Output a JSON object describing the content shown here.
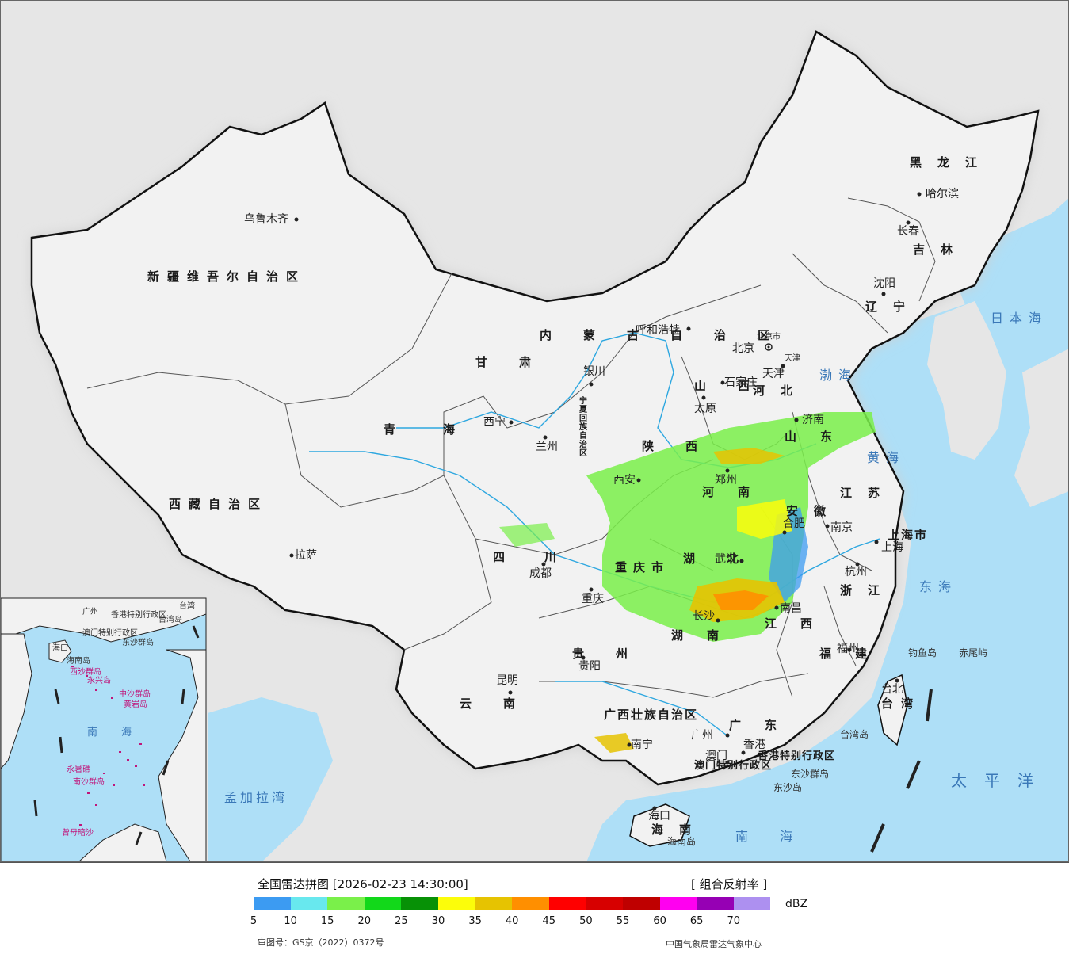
{
  "legend": {
    "title": "全国雷达拼图 [2026-02-23 14:30:00]",
    "product": "[ 组合反射率 ]",
    "unit": "dBZ",
    "ticks": [
      "5",
      "10",
      "15",
      "20",
      "25",
      "30",
      "35",
      "40",
      "45",
      "50",
      "55",
      "60",
      "65",
      "70"
    ],
    "colors": [
      "#3c9bf2",
      "#68e8ee",
      "#7af04a",
      "#12d81a",
      "#079106",
      "#fcfd0a",
      "#e6c301",
      "#ff8f00",
      "#ff0000",
      "#d70000",
      "#bf0000",
      "#ff00f0",
      "#9600b4",
      "#ad90f0"
    ],
    "approval": "审图号：GS京（2022）0372号",
    "organization": "中国气象局雷达气象中心"
  },
  "map": {
    "colors": {
      "land": "#f2f2f2",
      "sea": "#aedff7",
      "border": "#111111",
      "river": "#2da7e0"
    },
    "provinces": [
      "新疆维吾尔自治区",
      "西藏自治区",
      "青海",
      "甘肃",
      "内蒙古自治区",
      "黑龙江",
      "吉林",
      "辽宁",
      "河北",
      "山西",
      "陕西",
      "河南",
      "山东",
      "江苏",
      "安徽",
      "湖北",
      "四川",
      "重庆市",
      "贵州",
      "云南",
      "湖南",
      "江西",
      "浙江",
      "福建",
      "广东",
      "广西壮族自治区",
      "海南",
      "宁夏回族自治区",
      "上海市",
      "台湾",
      "香港特别行政区",
      "澳门特别行政区",
      "北京市",
      "天津"
    ],
    "cities": [
      "乌鲁木齐",
      "拉萨",
      "西宁",
      "兰州",
      "银川",
      "呼和浩特",
      "北京",
      "天津",
      "石家庄",
      "太原",
      "济南",
      "郑州",
      "西安",
      "成都",
      "重庆",
      "贵阳",
      "昆明",
      "武汉",
      "长沙",
      "南昌",
      "合肥",
      "南京",
      "上海",
      "杭州",
      "福州",
      "台北",
      "广州",
      "香港",
      "澳门",
      "南宁",
      "海口",
      "沈阳",
      "长春",
      "哈尔滨"
    ],
    "seas": [
      "日本海",
      "渤海",
      "黄海",
      "东海",
      "太平洋",
      "南海",
      "孟加拉湾"
    ],
    "islands": [
      "钓鱼岛",
      "赤尾屿",
      "台湾岛",
      "东沙群岛",
      "东沙岛",
      "海南岛"
    ],
    "inset": {
      "labels": [
        "广州",
        "澳门特别行政区",
        "香港特别行政区",
        "台湾",
        "台湾岛",
        "海口",
        "海南岛",
        "东沙群岛",
        "南海"
      ],
      "pink_labels": [
        "西沙群岛",
        "永兴岛",
        "中沙群岛",
        "黄岩岛",
        "南沙群岛",
        "永暑礁",
        "曾母暗沙"
      ]
    }
  }
}
